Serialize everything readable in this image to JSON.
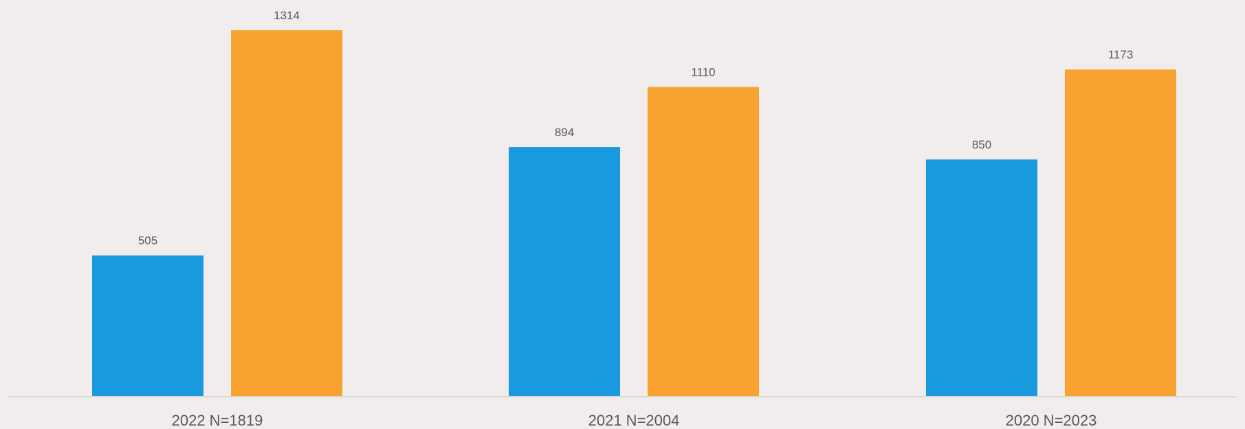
{
  "chart_data": {
    "type": "bar",
    "categories": [
      "2022 N=1819",
      "2021 N=2004",
      "2020 N=2023"
    ],
    "series": [
      {
        "values": [
          505,
          894,
          850
        ],
        "color": "#1a9ade"
      },
      {
        "values": [
          1314,
          1110,
          1173
        ],
        "color": "#f8a231"
      }
    ],
    "ylim": [
      0,
      1420
    ],
    "grid": false,
    "legend": "none",
    "title": "",
    "xlabel": "",
    "ylabel": "",
    "background": "#f1edec",
    "axis_color": "#d4d0cf"
  }
}
